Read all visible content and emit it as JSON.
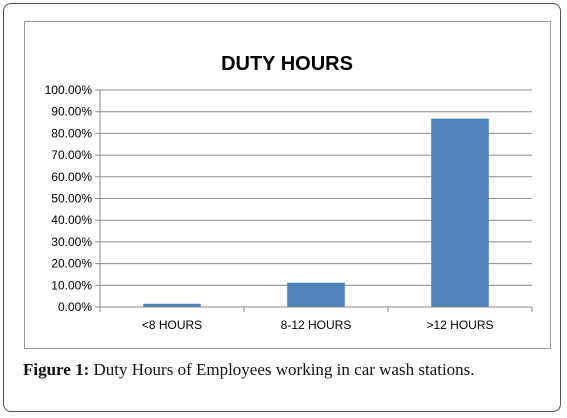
{
  "chart_data": {
    "type": "bar",
    "title": "DUTY HOURS",
    "categories": [
      "<8 HOURS",
      "8-12 HOURS",
      ">12 HOURS"
    ],
    "values": [
      1.5,
      11.2,
      86.8
    ],
    "ylim": [
      0,
      100
    ],
    "ytick_values": [
      0,
      10,
      20,
      30,
      40,
      50,
      60,
      70,
      80,
      90,
      100
    ],
    "ytick_labels": [
      "0.00%",
      "10.00%",
      "20.00%",
      "30.00%",
      "40.00%",
      "50.00%",
      "60.00%",
      "70.00%",
      "80.00%",
      "90.00%",
      "100.00%"
    ],
    "xlabel": "",
    "ylabel": "",
    "grid": true,
    "legend": "none",
    "bar_color": "#4f81bd"
  },
  "caption": {
    "label": "Figure 1:",
    "text": " Duty Hours of Employees working in car wash stations."
  }
}
